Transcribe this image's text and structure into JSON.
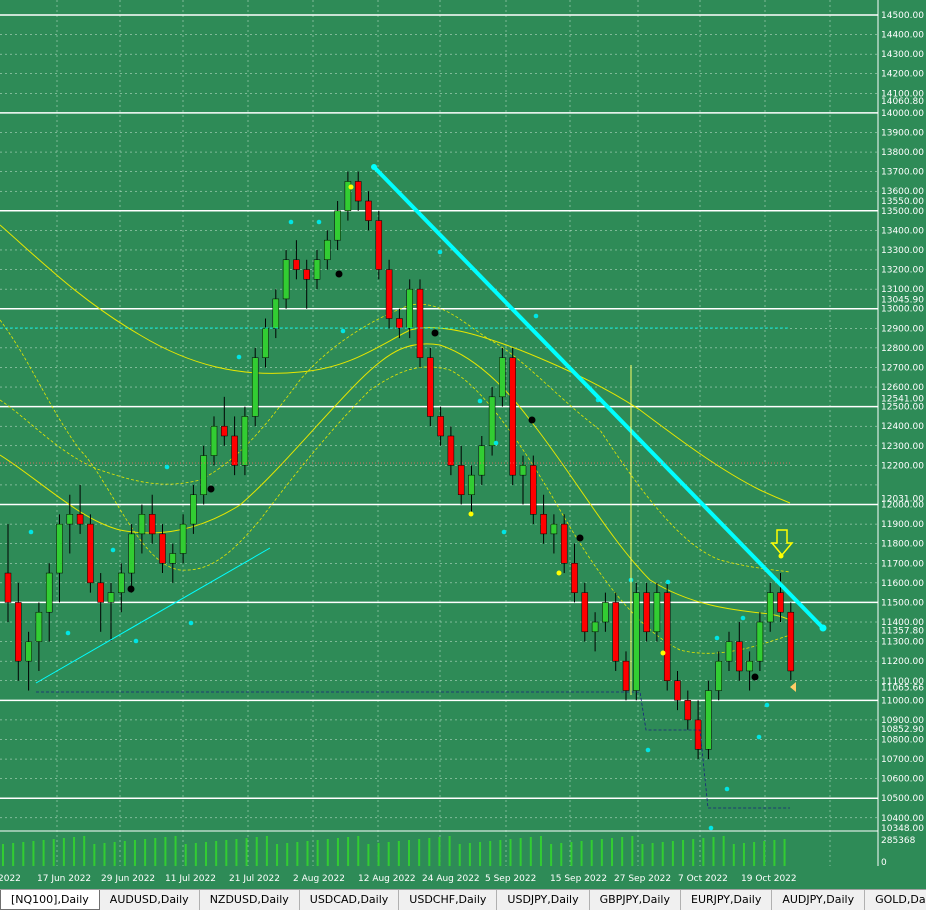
{
  "price_axis": {
    "labels": [
      "14500.00",
      "14400.00",
      "14300.00",
      "14200.00",
      "14100.00",
      "14060.80",
      "14000.00",
      "13900.00",
      "13800.00",
      "13700.00",
      "13600.00",
      "13550.00",
      "13500.00",
      "13400.00",
      "13300.00",
      "13200.00",
      "13100.00",
      "13045.90",
      "13000.00",
      "12900.00",
      "12800.00",
      "12700.00",
      "12600.00",
      "12541.00",
      "12500.00",
      "12400.00",
      "12300.00",
      "12200.00",
      "12031.00",
      "12000.00",
      "11900.00",
      "11800.00",
      "11700.00",
      "11600.00",
      "11500.00",
      "11400.00",
      "11357.80",
      "11300.00",
      "11200.00",
      "11100.00",
      "11065.66",
      "11000.00",
      "10900.00",
      "10852.90",
      "10800.00",
      "10700.00",
      "10600.00",
      "10500.00",
      "10400.00",
      "10348.00"
    ]
  },
  "volume_axis": {
    "label": "285368",
    "zero_label": "0"
  },
  "time_axis": {
    "labels": [
      "2022",
      "17 Jun 2022",
      "29 Jun 2022",
      "11 Jul 2022",
      "21 Jul 2022",
      "2 Aug 2022",
      "12 Aug 2022",
      "24 Aug 2022",
      "5 Sep 2022",
      "15 Sep 2022",
      "27 Sep 2022",
      "7 Oct 2022",
      "19 Oct 2022"
    ]
  },
  "tabs": [
    {
      "label": "[NQ100],Daily",
      "active": true
    },
    {
      "label": "AUDUSD,Daily",
      "active": false
    },
    {
      "label": "NZDUSD,Daily",
      "active": false
    },
    {
      "label": "USDCAD,Daily",
      "active": false
    },
    {
      "label": "USDCHF,Daily",
      "active": false
    },
    {
      "label": "USDJPY,Daily",
      "active": false
    },
    {
      "label": "GBPJPY,Daily",
      "active": false
    },
    {
      "label": "EURJPY,Daily",
      "active": false
    },
    {
      "label": "AUDJPY,Daily",
      "active": false
    },
    {
      "label": "GOLD,Daily",
      "active": false
    }
  ],
  "tab_scroll_icon": "chevron-right-icon",
  "colors": {
    "background": "#2e8b57",
    "bull_candle": "#32cd32",
    "bear_candle": "#ff0000",
    "trendline": "#00ffff",
    "moving_average": "#ffff00",
    "grid": "#ffffff"
  },
  "chart_data": {
    "type": "candlestick",
    "symbol": "[NQ100]",
    "timeframe": "Daily",
    "ylim": [
      10348,
      14500
    ],
    "x": [
      "17 Jun 2022",
      "29 Jun 2022",
      "11 Jul 2022",
      "21 Jul 2022",
      "2 Aug 2022",
      "12 Aug 2022",
      "24 Aug 2022",
      "5 Sep 2022",
      "15 Sep 2022",
      "27 Sep 2022",
      "7 Oct 2022",
      "19 Oct 2022"
    ],
    "close_approx": [
      11600,
      11550,
      11850,
      12400,
      13200,
      13650,
      12900,
      12100,
      11750,
      11250,
      10780,
      11350
    ],
    "horizontal_levels": [
      14500,
      14000,
      13500,
      13000,
      12500,
      12000,
      11500,
      11000,
      10500
    ],
    "trendlines": [
      {
        "from": [
          "12 Aug 2022",
          13700
        ],
        "to": [
          "24 Oct 2022",
          11400
        ]
      },
      {
        "from": [
          "17 Jun 2022",
          11050
        ],
        "to": [
          "21 Jul 2022",
          11800
        ]
      }
    ]
  }
}
